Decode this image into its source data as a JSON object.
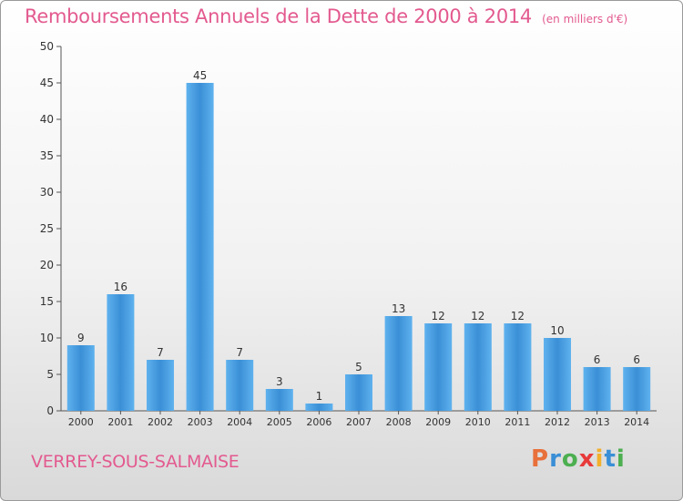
{
  "header": {
    "title": "Remboursements Annuels de la Dette de 2000 à 2014",
    "unit": "(en milliers d'€)"
  },
  "footer": {
    "commune": "VERREY-SOUS-SALMAISE",
    "logo": "Proxiti",
    "logo_colors": [
      "#e8703a",
      "#3a8fd6",
      "#4caf50",
      "#e83a3a",
      "#f2b02c",
      "#3a8fd6",
      "#4caf50"
    ]
  },
  "chart_data": {
    "type": "bar",
    "title": "Remboursements Annuels de la Dette de 2000 à 2014",
    "xlabel": "",
    "ylabel": "",
    "categories": [
      "2000",
      "2001",
      "2002",
      "2003",
      "2004",
      "2005",
      "2006",
      "2007",
      "2008",
      "2009",
      "2010",
      "2011",
      "2012",
      "2013",
      "2014"
    ],
    "values": [
      9,
      16,
      7,
      45,
      7,
      3,
      1,
      5,
      13,
      12,
      12,
      12,
      10,
      6,
      6
    ],
    "ylim": [
      0,
      50
    ],
    "yticks": [
      0,
      5,
      10,
      15,
      20,
      25,
      30,
      35,
      40,
      45,
      50
    ],
    "grid": false,
    "legend": "none",
    "bar_color": "#3a8fd6",
    "bar_color_light": "#5fb2ee",
    "text_color": "#333333"
  }
}
